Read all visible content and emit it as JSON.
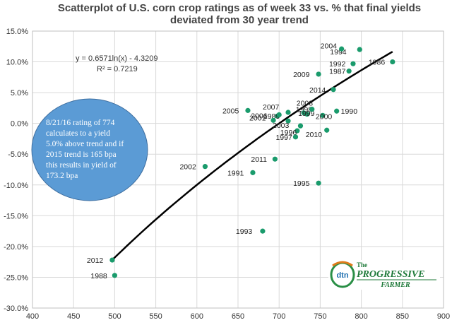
{
  "chart_data": {
    "type": "scatter",
    "title_lines": [
      "Scatterplot of U.S. corn crop ratings as of week 33 vs. % that final yields",
      "deviated from 30 year trend"
    ],
    "xlim": [
      400,
      900
    ],
    "x_ticks": [
      "400",
      "450",
      "500",
      "550",
      "600",
      "650",
      "700",
      "750",
      "800",
      "850",
      "900"
    ],
    "ylim": [
      -30,
      15
    ],
    "y_ticks": [
      "15.0%",
      "10.0%",
      "5.0%",
      "0.0%",
      "-5.0%",
      "-10.0%",
      "-15.0%",
      "-20.0%",
      "-25.0%",
      "-30.0%"
    ],
    "grid": true,
    "point_color": "#1a9b6c",
    "trendline": {
      "color": "#000000",
      "a": 0.6571,
      "b": -4.3209,
      "x_range": [
        498,
        838
      ]
    },
    "points": [
      {
        "label": "1986",
        "x": 838,
        "y": 10.0
      },
      {
        "label": "1987",
        "x": 785,
        "y": 8.5
      },
      {
        "label": "1988",
        "x": 500,
        "y": -24.7
      },
      {
        "label": "1989",
        "x": 698,
        "y": 1.2
      },
      {
        "label": "1990",
        "x": 770,
        "y": 2.0
      },
      {
        "label": "1991",
        "x": 668,
        "y": -8.0
      },
      {
        "label": "1992",
        "x": 790,
        "y": 9.7
      },
      {
        "label": "1993",
        "x": 680,
        "y": -17.5
      },
      {
        "label": "1994",
        "x": 798,
        "y": 12.0
      },
      {
        "label": "1995",
        "x": 748,
        "y": -9.7
      },
      {
        "label": "1996",
        "x": 722,
        "y": -1.2
      },
      {
        "label": "1997",
        "x": 720,
        "y": -2.2
      },
      {
        "label": "1998",
        "x": 734,
        "y": 1.5
      },
      {
        "label": "1999",
        "x": 730,
        "y": 1.7
      },
      {
        "label": "2000",
        "x": 753,
        "y": 1.3
      },
      {
        "label": "2001",
        "x": 693,
        "y": 0.5
      },
      {
        "label": "2002",
        "x": 610,
        "y": -7.0
      },
      {
        "label": "2003",
        "x": 711,
        "y": 0.4
      },
      {
        "label": "2004",
        "x": 776,
        "y": 12.1
      },
      {
        "label": "2005",
        "x": 662,
        "y": 2.1
      },
      {
        "label": "2006",
        "x": 700,
        "y": 1.4
      },
      {
        "label": "2007",
        "x": 711,
        "y": 1.8
      },
      {
        "label": "2008",
        "x": 740,
        "y": 2.3
      },
      {
        "label": "2009",
        "x": 748,
        "y": 8.0
      },
      {
        "label": "2010",
        "x": 758,
        "y": -1.1
      },
      {
        "label": "2011",
        "x": 695,
        "y": -5.8
      },
      {
        "label": "2012",
        "x": 497,
        "y": -22.2
      },
      {
        "label": "2014",
        "x": 766,
        "y": 5.5
      },
      {
        "label": "",
        "x": 726,
        "y": -0.4
      }
    ],
    "equation": "y = 0.6571ln(x) - 4.3209",
    "r_squared": "R² = 0.7219",
    "callout": {
      "fill": "#5b9bd5",
      "lines": [
        "8/21/16 rating of 774",
        "calculates to a yield",
        "5.0% above trend and  if",
        "2015 trend is 165 bpa",
        "this results in yield of",
        "173.2 bpa"
      ]
    }
  },
  "logo": {
    "badge": "dtn",
    "line1": "The",
    "line2": "PROGRESSIVE",
    "line3": "FARMER"
  }
}
